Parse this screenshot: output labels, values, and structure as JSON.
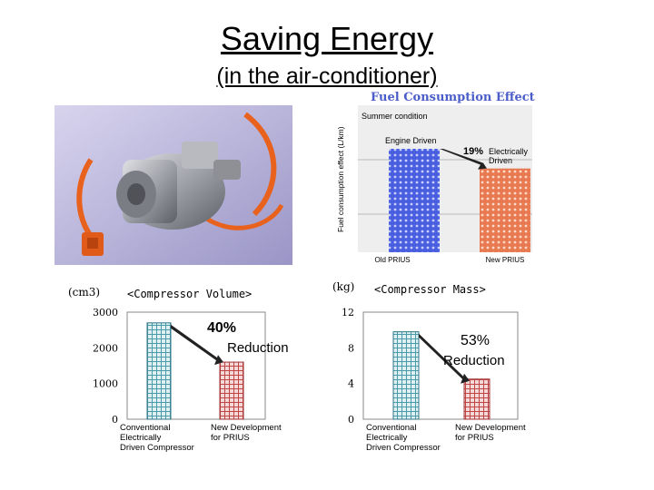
{
  "slide": {
    "title": "Saving Energy",
    "subtitle": "(in the air-conditioner)"
  },
  "photo": {
    "icon": "electric-compressor-photo"
  },
  "colors": {
    "blue_bar": "#3b4fd8",
    "orange_bar": "#e8774f",
    "blue_hatch": "#5fa8b8",
    "red_hatch": "#c04848",
    "panel_bg": "#eeeeee"
  },
  "chart_data": [
    {
      "type": "bar",
      "title": "Fuel Consumption Effect",
      "ylabel": "Fuel consumption effect (L/km)",
      "condition": "Summer condition",
      "categories": [
        "Old PRIUS",
        "New PRIUS"
      ],
      "bar_labels": [
        "Engine Driven",
        "Electrically Driven"
      ],
      "values": [
        100,
        81
      ],
      "annotation": "19%",
      "grid": true
    },
    {
      "type": "bar",
      "title": "<Compressor Volume>",
      "unit": "(cm3)",
      "yticks": [
        "3000",
        "2000",
        "1000",
        "0"
      ],
      "ylim": [
        0,
        3000
      ],
      "categories": [
        "Conventional Electrically Driven Compressor",
        "New Development for PRIUS"
      ],
      "category_lines": [
        [
          "Conventional",
          "Electrically",
          "Driven Compressor"
        ],
        [
          "New Development",
          "for PRIUS"
        ]
      ],
      "values": [
        2700,
        1600
      ],
      "annotation": [
        "40%",
        "Reduction"
      ]
    },
    {
      "type": "bar",
      "title": "<Compressor Mass>",
      "unit": "(kg)",
      "yticks": [
        "12",
        "8",
        "4",
        "0"
      ],
      "ylim": [
        0,
        12
      ],
      "categories": [
        "Conventional Electrically Driven Compressor",
        "New Development for PRIUS"
      ],
      "category_lines": [
        [
          "Conventional",
          "Electrically",
          "Driven Compressor"
        ],
        [
          "New Development",
          "for PRIUS"
        ]
      ],
      "values": [
        9.8,
        4.5
      ],
      "annotation": [
        "53%",
        "Reduction"
      ]
    }
  ]
}
